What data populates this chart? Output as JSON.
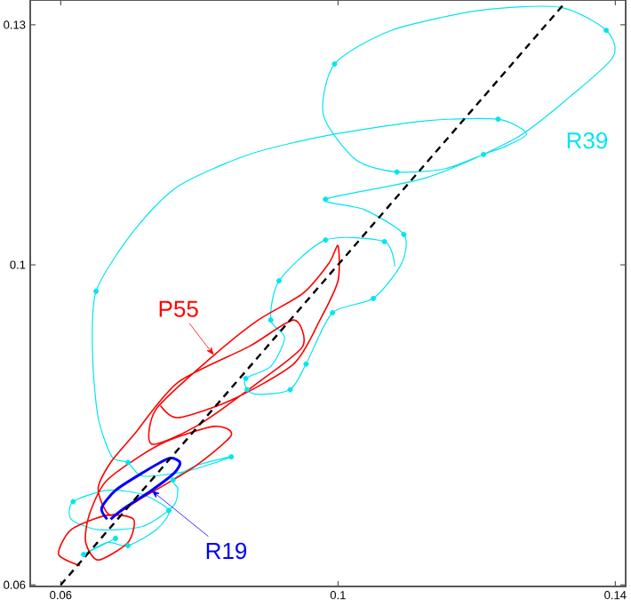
{
  "chart_data": {
    "type": "line",
    "xlim": [
      0.0556,
      0.1415
    ],
    "ylim": [
      0.0598,
      0.1331
    ],
    "xticks": [
      0.06,
      0.1,
      0.14
    ],
    "yticks": [
      0.06,
      0.1,
      0.13
    ],
    "series": [
      {
        "name": "R39",
        "color": "#00e5ee",
        "line_style": "solid",
        "x": [
          0.0679,
          0.0633,
          0.0667,
          0.0697,
          0.0738,
          0.0756,
          0.0718,
          0.0667,
          0.0618,
          0.0615,
          0.0654,
          0.0718,
          0.0762,
          0.0769,
          0.0762,
          0.0795,
          0.0846,
          0.0782,
          0.0718,
          0.0697,
          0.0674,
          0.0654,
          0.0646,
          0.0651,
          0.0705,
          0.0769,
          0.0872,
          0.0987,
          0.1128,
          0.1231,
          0.1272,
          0.1244,
          0.121,
          0.1154,
          0.1085,
          0.1026,
          0.0979,
          0.0995,
          0.1077,
          0.1205,
          0.132,
          0.1387,
          0.1397,
          0.1333,
          0.1256,
          0.1128,
          0.0982,
          0.1038,
          0.1095,
          0.1092,
          0.1051,
          0.0992,
          0.0954,
          0.0931,
          0.0885,
          0.0869,
          0.0867,
          0.0903,
          0.0923,
          0.0903,
          0.0915,
          0.0982,
          0.1067,
          0.1082
        ],
        "values": [
          0.0658,
          0.0638,
          0.0653,
          0.0649,
          0.0669,
          0.0693,
          0.0713,
          0.0718,
          0.0704,
          0.0682,
          0.0669,
          0.0673,
          0.0698,
          0.072,
          0.0731,
          0.0749,
          0.076,
          0.0742,
          0.0736,
          0.0753,
          0.076,
          0.0809,
          0.0887,
          0.0967,
          0.1042,
          0.1098,
          0.1138,
          0.1162,
          0.118,
          0.1182,
          0.1164,
          0.1149,
          0.1138,
          0.112,
          0.1116,
          0.1131,
          0.1187,
          0.1251,
          0.1293,
          0.1318,
          0.1322,
          0.1293,
          0.126,
          0.1209,
          0.1158,
          0.1109,
          0.1082,
          0.1069,
          0.1038,
          0.1002,
          0.0958,
          0.094,
          0.0876,
          0.0844,
          0.0838,
          0.0844,
          0.0858,
          0.0873,
          0.0909,
          0.0931,
          0.098,
          0.1031,
          0.1029,
          0.0998
        ]
      },
      {
        "type": "scatter",
        "color": "#00e5ee",
        "marker": "circle",
        "x": [
          0.0679,
          0.0633,
          0.0697,
          0.0756,
          0.0618,
          0.0762,
          0.0846,
          0.0697,
          0.0651,
          0.1231,
          0.121,
          0.1085,
          0.0995,
          0.1387,
          0.0982,
          0.1095,
          0.1051,
          0.0992,
          0.0954,
          0.0931,
          0.0869,
          0.0867,
          0.0903,
          0.0915,
          0.0982,
          0.1067
        ],
        "values": [
          0.0658,
          0.0638,
          0.0649,
          0.0693,
          0.0704,
          0.0731,
          0.076,
          0.0753,
          0.0967,
          0.1182,
          0.1138,
          0.1116,
          0.1251,
          0.1293,
          0.1082,
          0.1038,
          0.0958,
          0.094,
          0.0876,
          0.0844,
          0.0844,
          0.0858,
          0.0931,
          0.098,
          0.1031,
          0.1029
        ]
      },
      {
        "name": "P55",
        "color": "#ff0000",
        "line_style": "solid",
        "x": [
          0.0628,
          0.0597,
          0.0615,
          0.0667,
          0.0705,
          0.0697,
          0.0654,
          0.0636,
          0.0641,
          0.0667,
          0.0744,
          0.0821,
          0.0846,
          0.0795,
          0.0718,
          0.0672,
          0.0654,
          0.0672,
          0.0705,
          0.0769,
          0.0872,
          0.0936,
          0.0949,
          0.0885,
          0.0795,
          0.0731,
          0.0738,
          0.0821,
          0.0885,
          0.0949,
          0.0987,
          0.1,
          0.1,
          0.0974,
          0.0936,
          0.0846,
          0.0769,
          0.0744
        ],
        "values": [
          0.0624,
          0.0638,
          0.0669,
          0.0687,
          0.0682,
          0.0653,
          0.0631,
          0.0653,
          0.0687,
          0.0731,
          0.0776,
          0.0798,
          0.0787,
          0.0749,
          0.0709,
          0.0687,
          0.072,
          0.0753,
          0.0787,
          0.0853,
          0.0898,
          0.0931,
          0.0898,
          0.0853,
          0.0798,
          0.0776,
          0.082,
          0.0887,
          0.0931,
          0.0964,
          0.1002,
          0.1024,
          0.098,
          0.0931,
          0.0876,
          0.0831,
          0.0809,
          0.0824
        ]
      },
      {
        "name": "R19",
        "color": "#0000ff",
        "line_style": "solid",
        "x": [
          0.0667,
          0.0659,
          0.0679,
          0.0718,
          0.0756,
          0.0772,
          0.0764,
          0.0731,
          0.0692,
          0.0672
        ],
        "values": [
          0.0682,
          0.0696,
          0.0718,
          0.074,
          0.0758,
          0.0753,
          0.074,
          0.0718,
          0.0696,
          0.0682
        ]
      },
      {
        "color": "#000000",
        "line_style": "dashed",
        "x": [
          0.06,
          0.1325
        ],
        "values": [
          0.06,
          0.1325
        ]
      }
    ]
  }
}
